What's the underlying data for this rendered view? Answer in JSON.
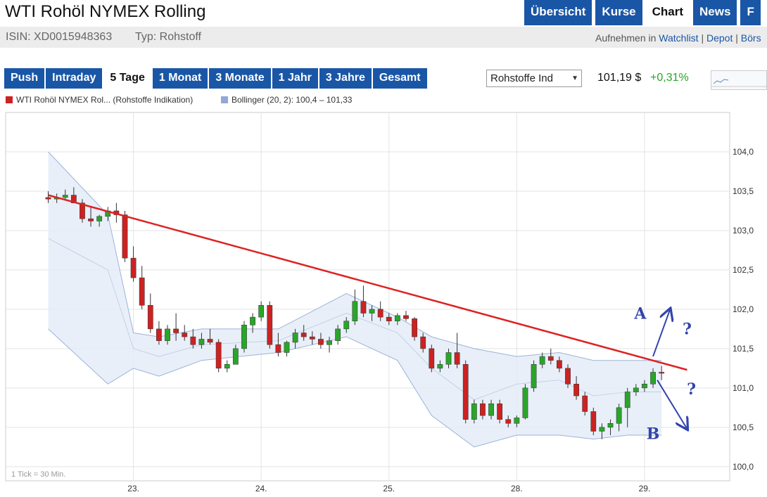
{
  "header": {
    "title": "WTI Rohöl NYMEX Rolling",
    "tabs": [
      {
        "label": "Übersicht",
        "active": false
      },
      {
        "label": "Kurse",
        "active": false
      },
      {
        "label": "Chart",
        "active": true
      },
      {
        "label": "News",
        "active": false
      },
      {
        "label": "F",
        "active": false
      }
    ]
  },
  "info": {
    "isin": "ISIN: XD0015948363",
    "typ": "Typ: Rohstoff",
    "aufnehmen": "Aufnehmen in",
    "watchlist": "Watchlist",
    "sep": "|",
    "depot": "Depot",
    "boerse": "Börs"
  },
  "range_tabs": [
    {
      "label": "Push",
      "active": false
    },
    {
      "label": "Intraday",
      "active": false
    },
    {
      "label": "5 Tage",
      "active": true
    },
    {
      "label": "1 Monat",
      "active": false
    },
    {
      "label": "3 Monate",
      "active": false
    },
    {
      "label": "1 Jahr",
      "active": false
    },
    {
      "label": "3 Jahre",
      "active": false
    },
    {
      "label": "Gesamt",
      "active": false
    }
  ],
  "select": {
    "value": "Rohstoffe Ind"
  },
  "quote": {
    "price": "101,19 $",
    "change": "+0,31%"
  },
  "colors": {
    "accent": "#1a56a6",
    "up": "#2aa52a",
    "down": "#cc2222",
    "trendline": "#dd2222",
    "band_fill": "#e4ecf7",
    "band_stroke": "#9db3d8",
    "annotation": "#3344aa"
  },
  "chart_data": {
    "type": "candlestick",
    "legend": [
      {
        "name": "WTI Rohöl NYMEX Rol... (Rohstoffe Indikation)",
        "color": "#cc2222"
      },
      {
        "name": "Bollinger (20, 2): 100,4 – 101,33",
        "color": "#8fa8d6"
      }
    ],
    "x_labels": [
      "23.",
      "24.",
      "25.",
      "28.",
      "29."
    ],
    "x_label_positions": [
      10,
      25,
      40,
      55,
      70
    ],
    "x_range": [
      -5,
      80
    ],
    "y_ticks": [
      "100,0",
      "100,5",
      "101,0",
      "101,5",
      "102,0",
      "102,5",
      "103,0",
      "103,5",
      "104,0"
    ],
    "y_tick_values": [
      100.0,
      100.5,
      101.0,
      101.5,
      102.0,
      102.5,
      103.0,
      103.5,
      104.0
    ],
    "ylim": [
      99.82,
      104.5
    ],
    "grid": true,
    "note": "1 Tick = 30 Min.",
    "series": [
      {
        "name": "WTI Rohöl NYMEX Rolling",
        "ohlc": [
          [
            103.42,
            103.5,
            103.35,
            103.4
          ],
          [
            103.4,
            103.47,
            103.35,
            103.42
          ],
          [
            103.42,
            103.52,
            103.38,
            103.45
          ],
          [
            103.45,
            103.55,
            103.35,
            103.35
          ],
          [
            103.35,
            103.4,
            103.1,
            103.15
          ],
          [
            103.15,
            103.3,
            103.05,
            103.12
          ],
          [
            103.12,
            103.2,
            103.05,
            103.18
          ],
          [
            103.18,
            103.3,
            103.12,
            103.25
          ],
          [
            103.25,
            103.35,
            103.1,
            103.2
          ],
          [
            103.2,
            103.25,
            102.6,
            102.65
          ],
          [
            102.65,
            102.8,
            102.35,
            102.4
          ],
          [
            102.4,
            102.55,
            102.0,
            102.05
          ],
          [
            102.05,
            102.2,
            101.7,
            101.75
          ],
          [
            101.75,
            101.85,
            101.55,
            101.6
          ],
          [
            101.6,
            101.8,
            101.55,
            101.75
          ],
          [
            101.75,
            101.95,
            101.6,
            101.7
          ],
          [
            101.7,
            101.8,
            101.6,
            101.65
          ],
          [
            101.65,
            101.75,
            101.5,
            101.55
          ],
          [
            101.55,
            101.7,
            101.5,
            101.62
          ],
          [
            101.62,
            101.75,
            101.55,
            101.58
          ],
          [
            101.58,
            101.62,
            101.2,
            101.25
          ],
          [
            101.25,
            101.35,
            101.2,
            101.3
          ],
          [
            101.3,
            101.55,
            101.3,
            101.5
          ],
          [
            101.5,
            101.85,
            101.45,
            101.8
          ],
          [
            101.8,
            101.95,
            101.7,
            101.9
          ],
          [
            101.9,
            102.1,
            101.85,
            102.05
          ],
          [
            102.05,
            102.1,
            101.5,
            101.55
          ],
          [
            101.55,
            101.7,
            101.4,
            101.45
          ],
          [
            101.45,
            101.6,
            101.4,
            101.58
          ],
          [
            101.58,
            101.75,
            101.5,
            101.7
          ],
          [
            101.7,
            101.8,
            101.6,
            101.65
          ],
          [
            101.65,
            101.72,
            101.55,
            101.62
          ],
          [
            101.62,
            101.7,
            101.5,
            101.55
          ],
          [
            101.55,
            101.65,
            101.45,
            101.6
          ],
          [
            101.6,
            101.8,
            101.55,
            101.75
          ],
          [
            101.75,
            101.9,
            101.7,
            101.85
          ],
          [
            101.85,
            102.25,
            101.8,
            102.1
          ],
          [
            102.1,
            102.3,
            101.9,
            101.95
          ],
          [
            101.95,
            102.05,
            101.85,
            102.0
          ],
          [
            102.0,
            102.1,
            101.85,
            101.9
          ],
          [
            101.9,
            101.95,
            101.8,
            101.85
          ],
          [
            101.85,
            101.95,
            101.8,
            101.92
          ],
          [
            101.92,
            101.98,
            101.85,
            101.88
          ],
          [
            101.88,
            101.9,
            101.6,
            101.65
          ],
          [
            101.65,
            101.7,
            101.45,
            101.5
          ],
          [
            101.5,
            101.55,
            101.2,
            101.25
          ],
          [
            101.25,
            101.35,
            101.2,
            101.3
          ],
          [
            101.3,
            101.5,
            101.25,
            101.45
          ],
          [
            101.45,
            101.7,
            101.25,
            101.3
          ],
          [
            101.3,
            101.35,
            100.55,
            100.6
          ],
          [
            100.6,
            100.85,
            100.55,
            100.8
          ],
          [
            100.8,
            100.85,
            100.6,
            100.65
          ],
          [
            100.65,
            100.85,
            100.6,
            100.8
          ],
          [
            100.8,
            100.85,
            100.55,
            100.6
          ],
          [
            100.6,
            100.65,
            100.5,
            100.55
          ],
          [
            100.55,
            100.65,
            100.5,
            100.62
          ],
          [
            100.62,
            101.05,
            100.6,
            101.0
          ],
          [
            101.0,
            101.35,
            100.95,
            101.3
          ],
          [
            101.3,
            101.45,
            101.25,
            101.4
          ],
          [
            101.4,
            101.5,
            101.3,
            101.35
          ],
          [
            101.35,
            101.4,
            101.2,
            101.25
          ],
          [
            101.25,
            101.3,
            101.0,
            101.05
          ],
          [
            101.05,
            101.15,
            100.85,
            100.9
          ],
          [
            100.9,
            100.95,
            100.65,
            100.7
          ],
          [
            100.7,
            100.75,
            100.4,
            100.45
          ],
          [
            100.45,
            100.55,
            100.35,
            100.5
          ],
          [
            100.5,
            100.6,
            100.4,
            100.55
          ],
          [
            100.55,
            100.8,
            100.45,
            100.75
          ],
          [
            100.75,
            101.0,
            100.5,
            100.95
          ],
          [
            100.95,
            101.05,
            100.9,
            101.0
          ],
          [
            101.0,
            101.1,
            100.95,
            101.05
          ],
          [
            101.05,
            101.25,
            101.0,
            101.2
          ],
          [
            101.2,
            101.28,
            101.1,
            101.19
          ]
        ]
      },
      {
        "name": "Bollinger upper",
        "x": [
          0,
          7,
          10,
          13,
          18,
          27,
          35,
          41,
          45,
          50,
          55,
          60,
          64,
          68,
          72
        ],
        "values": [
          104.0,
          103.2,
          101.7,
          101.65,
          101.75,
          101.75,
          102.2,
          101.9,
          101.65,
          101.5,
          101.4,
          101.45,
          101.35,
          101.35,
          101.35
        ]
      },
      {
        "name": "Bollinger middle",
        "x": [
          0,
          7,
          10,
          13,
          18,
          27,
          35,
          41,
          45,
          50,
          55,
          60,
          64,
          68,
          72
        ],
        "values": [
          102.9,
          102.5,
          101.5,
          101.4,
          101.55,
          101.6,
          101.95,
          101.7,
          101.25,
          100.85,
          101.05,
          101.1,
          100.9,
          100.95,
          100.95
        ]
      },
      {
        "name": "Bollinger lower",
        "x": [
          0,
          7,
          10,
          13,
          18,
          27,
          35,
          41,
          45,
          50,
          55,
          60,
          64,
          68,
          72
        ],
        "values": [
          101.75,
          101.05,
          101.25,
          101.15,
          101.35,
          101.45,
          101.65,
          101.35,
          100.65,
          100.25,
          100.4,
          100.4,
          100.35,
          100.4,
          100.4
        ]
      }
    ],
    "trendline": {
      "from": [
        0,
        103.45
      ],
      "to": [
        75,
        101.23
      ]
    },
    "annotations": [
      {
        "text": "A",
        "x": 69.5,
        "y": 101.88
      },
      {
        "text": "?",
        "x": 75,
        "y": 101.68
      },
      {
        "text": "?",
        "x": 75.5,
        "y": 100.92
      },
      {
        "text": "B",
        "x": 71,
        "y": 100.35
      }
    ],
    "arrows": [
      {
        "from": [
          71.0,
          101.4
        ],
        "to": [
          73.0,
          102.0
        ]
      },
      {
        "from": [
          71.5,
          101.1
        ],
        "to": [
          75.0,
          100.48
        ]
      }
    ]
  }
}
